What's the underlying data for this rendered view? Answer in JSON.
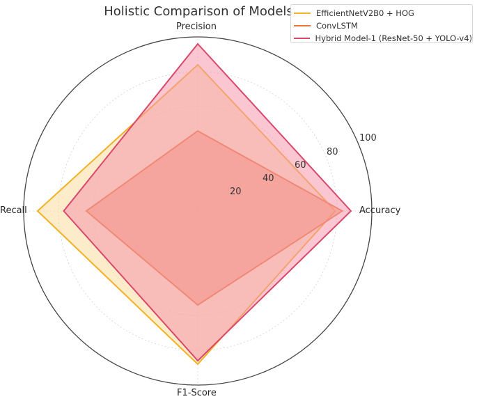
{
  "chart_data": {
    "type": "radar",
    "title": "Holistic Comparison of Models",
    "categories": [
      "Accuracy",
      "Precision",
      "Recall",
      "F1-Score"
    ],
    "category_angles_deg": {
      "Accuracy": 0,
      "Precision": 90,
      "Recall": 180,
      "F1-Score": 270
    },
    "radial_ticks": [
      20,
      40,
      60,
      80,
      100
    ],
    "rlim": [
      0,
      100
    ],
    "grid": true,
    "legend_position": "upper right",
    "series": [
      {
        "name": "EfficientNetV2B0 + HOG",
        "color": "#f2b124",
        "fill": "#fbdc9f",
        "values": {
          "Accuracy": 79,
          "Precision": 84,
          "Recall": 92,
          "F1-Score": 88
        }
      },
      {
        "name": "ConvLSTM",
        "color": "#ec7636",
        "fill": "#f28a5f",
        "values": {
          "Accuracy": 83,
          "Precision": 46,
          "Recall": 64,
          "F1-Score": 54
        }
      },
      {
        "name": "Hybrid Model-1 (ResNet-50 + YOLO-v4)",
        "color": "#d9486b",
        "fill": "#f497ab",
        "values": {
          "Accuracy": 88,
          "Precision": 96,
          "Recall": 77,
          "F1-Score": 86
        }
      }
    ]
  },
  "labels": {
    "title": "Holistic Comparison of Models",
    "accuracy": "Accuracy",
    "precision": "Precision",
    "recall": "Recall",
    "f1": "F1-Score",
    "ticks": [
      "20",
      "40",
      "60",
      "80",
      "100"
    ]
  },
  "legend": {
    "items": [
      {
        "label": "EfficientNetV2B0 + HOG",
        "color": "#f2b124"
      },
      {
        "label": "ConvLSTM",
        "color": "#ec7636"
      },
      {
        "label": "Hybrid Model-1 (ResNet-50 + YOLO-v4)",
        "color": "#d9486b"
      }
    ]
  }
}
